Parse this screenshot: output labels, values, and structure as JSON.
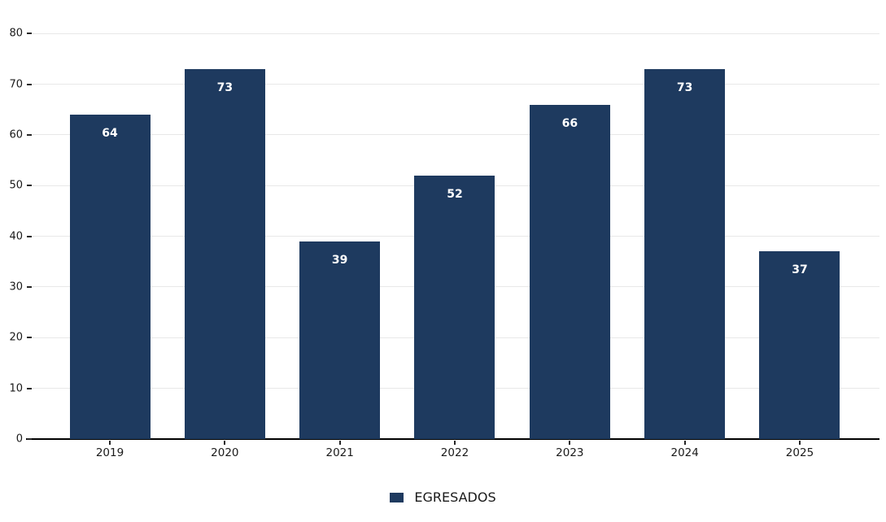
{
  "chart_data": {
    "type": "bar",
    "title": "",
    "xlabel": "",
    "ylabel": "",
    "categories": [
      "2019",
      "2020",
      "2021",
      "2022",
      "2023",
      "2024",
      "2025"
    ],
    "series": [
      {
        "name": "EGRESADOS",
        "values": [
          64,
          73,
          39,
          52,
          66,
          73,
          37
        ]
      }
    ],
    "value_labels": [
      "64",
      "73",
      "39",
      "52",
      "66",
      "73",
      "37"
    ],
    "ylim": [
      0,
      86.6
    ],
    "yticks": [
      0,
      10,
      20,
      30,
      40,
      50,
      60,
      70,
      80
    ],
    "grid": true,
    "legend_position": "bottom",
    "colors": {
      "bar": "#1e3a5f",
      "gridline": "#e8e8e8",
      "axis_line": "#000000",
      "tick": "#262626",
      "tick_label": "#1a1a1a",
      "value_label": "#ffffff",
      "background": "#ffffff"
    }
  },
  "legend": {
    "items": [
      {
        "label": "EGRESADOS",
        "color": "#1e3a5f"
      }
    ]
  }
}
